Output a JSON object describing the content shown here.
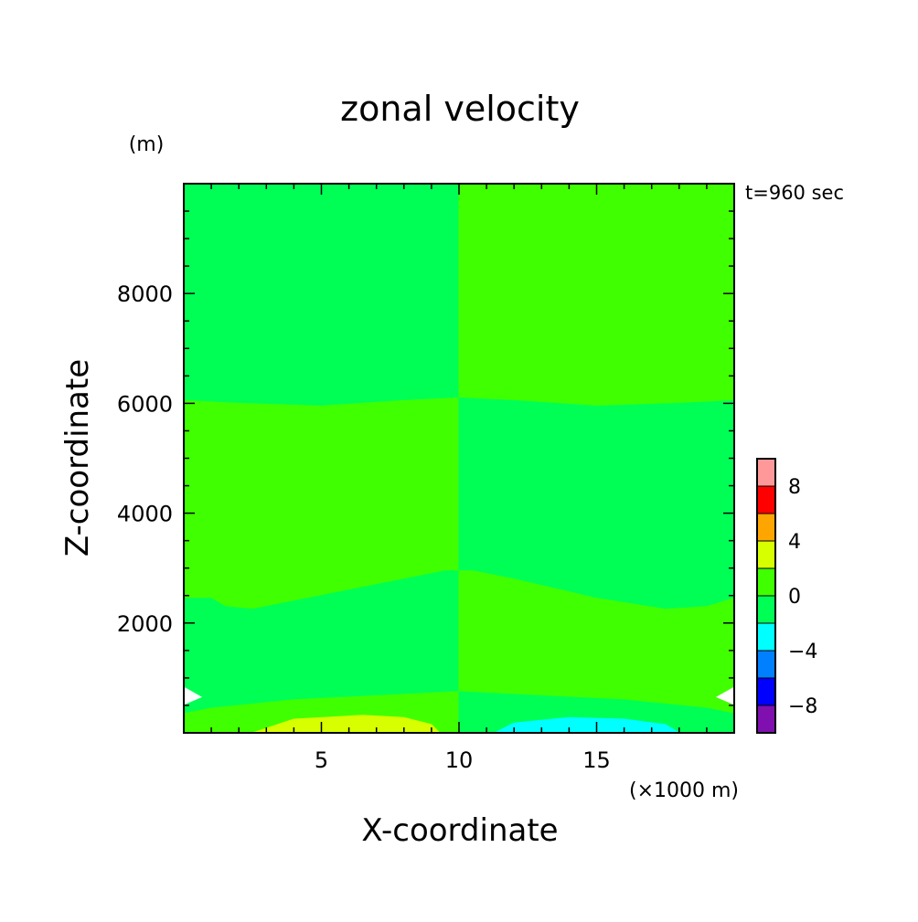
{
  "chart_data": {
    "type": "heatmap",
    "title": "zonal velocity",
    "xlabel": "X-coordinate",
    "ylabel": "Z-coordinate",
    "x_unit": "(×1000 m)",
    "y_unit": "(m)",
    "time_label": "t=960 sec",
    "xlim": [
      0,
      20
    ],
    "ylim": [
      0,
      10000
    ],
    "x_ticks": [
      {
        "value": 5,
        "label": "5"
      },
      {
        "value": 10,
        "label": "10"
      },
      {
        "value": 15,
        "label": "15"
      }
    ],
    "y_ticks": [
      {
        "value": 2000,
        "label": "2000"
      },
      {
        "value": 4000,
        "label": "4000"
      },
      {
        "value": 6000,
        "label": "6000"
      },
      {
        "value": 8000,
        "label": "8000"
      }
    ],
    "colorbar": {
      "levels": [
        {
          "from": -10,
          "to": -8,
          "color": "#7f0faf"
        },
        {
          "from": -8,
          "to": -6,
          "color": "#0000ff"
        },
        {
          "from": -6,
          "to": -4,
          "color": "#0080ff"
        },
        {
          "from": -4,
          "to": -2,
          "color": "#00ffff"
        },
        {
          "from": -2,
          "to": 0,
          "color": "#00ff55"
        },
        {
          "from": 0,
          "to": 2,
          "color": "#40ff00"
        },
        {
          "from": 2,
          "to": 4,
          "color": "#d8ff00"
        },
        {
          "from": 4,
          "to": 6,
          "color": "#ffa500"
        },
        {
          "from": 6,
          "to": 8,
          "color": "#ff0000"
        },
        {
          "from": 8,
          "to": 10,
          "color": "#ff9999"
        }
      ],
      "ticks": [
        {
          "value": -8,
          "label": "−8"
        },
        {
          "value": -4,
          "label": "−4"
        },
        {
          "value": 0,
          "label": "0"
        },
        {
          "value": 4,
          "label": "4"
        },
        {
          "value": 8,
          "label": "8"
        }
      ]
    },
    "regions": [
      {
        "name": "region-upper-left",
        "color": "#00ff55",
        "points": [
          [
            0,
            10000
          ],
          [
            10,
            10000
          ],
          [
            10,
            6100
          ],
          [
            8,
            6050
          ],
          [
            5,
            5950
          ],
          [
            2,
            6000
          ],
          [
            0,
            6050
          ]
        ]
      },
      {
        "name": "region-upper-right",
        "color": "#40ff00",
        "points": [
          [
            10,
            10000
          ],
          [
            20,
            10000
          ],
          [
            20,
            6050
          ],
          [
            18,
            6000
          ],
          [
            15,
            5950
          ],
          [
            12,
            6050
          ],
          [
            10,
            6100
          ]
        ]
      },
      {
        "name": "region-mid-left",
        "color": "#40ff00",
        "points": [
          [
            0,
            6050
          ],
          [
            2,
            6000
          ],
          [
            5,
            5950
          ],
          [
            8,
            6050
          ],
          [
            10,
            6100
          ],
          [
            10,
            2950
          ],
          [
            9.5,
            2950
          ],
          [
            8,
            2800
          ],
          [
            5,
            2500
          ],
          [
            2.5,
            2250
          ],
          [
            1.5,
            2300
          ],
          [
            1,
            2450
          ],
          [
            0,
            2450
          ]
        ]
      },
      {
        "name": "region-mid-right",
        "color": "#00ff55",
        "points": [
          [
            10,
            6100
          ],
          [
            12,
            6050
          ],
          [
            15,
            5950
          ],
          [
            18,
            6000
          ],
          [
            20,
            6050
          ],
          [
            20,
            2450
          ],
          [
            19,
            2300
          ],
          [
            17.5,
            2250
          ],
          [
            15,
            2450
          ],
          [
            12,
            2800
          ],
          [
            10.5,
            2950
          ],
          [
            10,
            2950
          ]
        ]
      },
      {
        "name": "region-low-left",
        "color": "#00ff55",
        "points": [
          [
            0,
            2450
          ],
          [
            1,
            2450
          ],
          [
            1.5,
            2300
          ],
          [
            2.5,
            2250
          ],
          [
            5,
            2500
          ],
          [
            8,
            2800
          ],
          [
            9.5,
            2950
          ],
          [
            10,
            2950
          ],
          [
            10,
            750
          ],
          [
            8,
            700
          ],
          [
            4,
            600
          ],
          [
            1,
            450
          ],
          [
            0,
            350
          ],
          [
            0,
            500
          ],
          [
            0.7,
            650
          ],
          [
            0,
            850
          ]
        ]
      },
      {
        "name": "region-low-right",
        "color": "#40ff00",
        "points": [
          [
            10,
            2950
          ],
          [
            10.5,
            2950
          ],
          [
            12,
            2800
          ],
          [
            15,
            2450
          ],
          [
            17.5,
            2250
          ],
          [
            19,
            2300
          ],
          [
            20,
            2450
          ],
          [
            20,
            850
          ],
          [
            19.3,
            650
          ],
          [
            20,
            500
          ],
          [
            20,
            350
          ],
          [
            19,
            450
          ],
          [
            16,
            600
          ],
          [
            12,
            700
          ],
          [
            10,
            750
          ]
        ]
      },
      {
        "name": "region-bottom-left",
        "color": "#40ff00",
        "points": [
          [
            0,
            350
          ],
          [
            1,
            450
          ],
          [
            4,
            600
          ],
          [
            8,
            700
          ],
          [
            10,
            750
          ],
          [
            10,
            0
          ],
          [
            0,
            0
          ]
        ]
      },
      {
        "name": "region-bottom-right",
        "color": "#00ff55",
        "points": [
          [
            10,
            750
          ],
          [
            12,
            700
          ],
          [
            16,
            600
          ],
          [
            19,
            450
          ],
          [
            20,
            350
          ],
          [
            20,
            0
          ],
          [
            10,
            0
          ]
        ]
      },
      {
        "name": "region-positive-jet",
        "color": "#d8ff00",
        "points": [
          [
            2.5,
            0
          ],
          [
            4,
            250
          ],
          [
            6.5,
            320
          ],
          [
            8,
            280
          ],
          [
            9,
            150
          ],
          [
            9.3,
            0
          ]
        ]
      },
      {
        "name": "region-negative-jet",
        "color": "#00ffff",
        "points": [
          [
            11.3,
            0
          ],
          [
            12,
            180
          ],
          [
            14,
            280
          ],
          [
            16,
            250
          ],
          [
            17.5,
            150
          ],
          [
            18,
            0
          ]
        ]
      }
    ]
  }
}
